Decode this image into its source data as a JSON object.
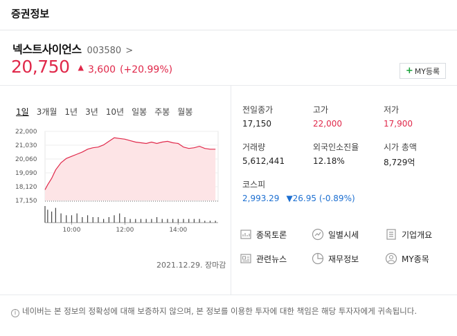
{
  "header": {
    "title": "증권정보"
  },
  "stock": {
    "name": "넥스트사이언스",
    "code": "003580",
    "code_arrow": ">",
    "price": "20,750",
    "change_symbol": "▲",
    "change": "3,600",
    "rate": "(+20.99%)",
    "my_button_plus": "+",
    "my_button_label": "MY등록"
  },
  "period_tabs": [
    "1일",
    "3개월",
    "1년",
    "3년",
    "10년",
    "일봉",
    "주봉",
    "월봉"
  ],
  "active_period": "1일",
  "chart_data": {
    "type": "area",
    "y_ticks": [
      "22,000",
      "21,030",
      "20,060",
      "19,090",
      "18,120",
      "17,150"
    ],
    "ylim": [
      17150,
      22000
    ],
    "reference_price": 17150,
    "x_ticks": [
      "10:00",
      "12:00",
      "14:00"
    ],
    "x_tick_hours": [
      10,
      12,
      14
    ],
    "xlim": [
      9,
      15.5
    ],
    "series": [
      {
        "x": [
          9.0,
          9.1,
          9.25,
          9.4,
          9.6,
          9.8,
          10.0,
          10.2,
          10.4,
          10.6,
          10.8,
          11.0,
          11.2,
          11.4,
          11.6,
          11.8,
          12.0,
          12.2,
          12.4,
          12.6,
          12.8,
          13.0,
          13.2,
          13.4,
          13.6,
          13.8,
          14.0,
          14.2,
          14.4,
          14.6,
          14.8,
          15.0,
          15.2,
          15.4
        ],
        "values": [
          17900,
          18250,
          18700,
          19300,
          19800,
          20100,
          20250,
          20400,
          20550,
          20750,
          20850,
          20900,
          21050,
          21300,
          21550,
          21500,
          21450,
          21350,
          21250,
          21200,
          21150,
          21250,
          21150,
          21250,
          21300,
          21200,
          21150,
          20900,
          20800,
          20850,
          20950,
          20800,
          20750,
          20750
        ]
      }
    ],
    "volume": [
      9,
      7,
      6,
      8,
      5,
      4,
      4,
      5,
      3,
      4,
      3,
      3,
      2,
      3,
      4,
      5,
      3,
      2,
      2,
      2,
      2,
      2,
      3,
      2,
      2,
      2,
      2,
      2,
      2,
      2,
      2,
      1,
      1,
      1
    ],
    "date_label": "2021.12.29. 장마감"
  },
  "info": {
    "prev_close_label": "전일종가",
    "prev_close": "17,150",
    "high_label": "고가",
    "high": "22,000",
    "low_label": "저가",
    "low": "17,900",
    "volume_label": "거래량",
    "volume": "5,612,441",
    "foreign_label": "외국인소진율",
    "foreign": "12.18%",
    "market_cap_label": "시가 총액",
    "market_cap": "8,729억",
    "index_label": "코스피",
    "index_value": "2,993.29",
    "index_change": "▼26.95 (-0.89%)"
  },
  "menu": {
    "discussion": "종목토론",
    "daily": "일별시세",
    "company": "기업개요",
    "news": "관련뉴스",
    "finance": "재무정보",
    "my_stocks": "MY종목"
  },
  "notice": {
    "icon": "i",
    "text": "네이버는 본 정보의 정확성에 대해 보증하지 않으며, 본 정보를 이용한 투자에 대한 책임은 해당 투자자에게 귀속됩니다."
  },
  "colors": {
    "up": "#e0284a",
    "down": "#1c6fd1",
    "accent": "#1aa33a",
    "area_fill": "#fde4e6"
  }
}
